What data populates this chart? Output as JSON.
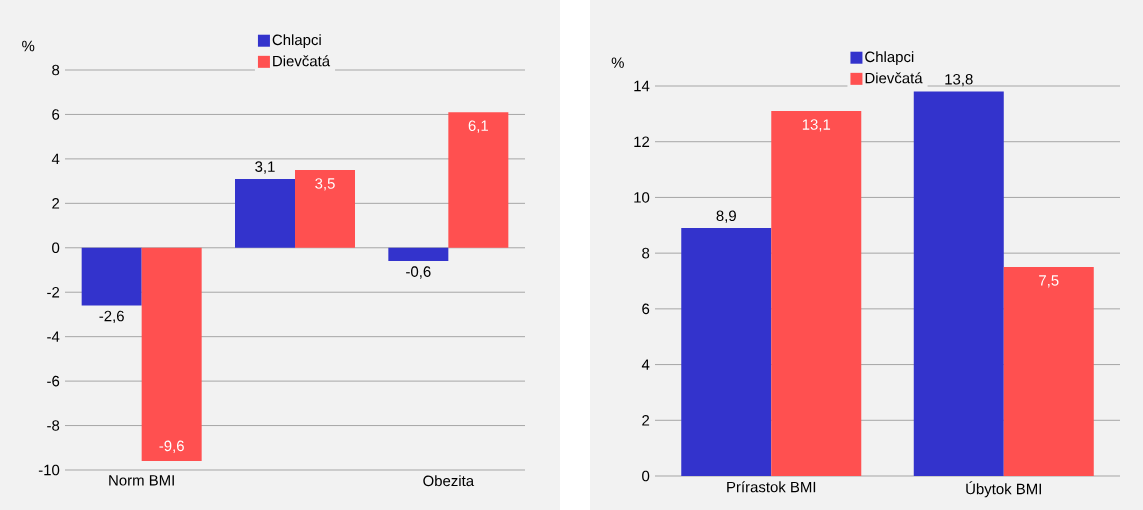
{
  "chart_data": [
    {
      "type": "bar",
      "ylabel": "%",
      "categories": [
        "Norm BMI",
        null,
        "Obezita"
      ],
      "series": [
        {
          "name": "Chlapci",
          "color": "#3333cc",
          "values": [
            -2.6,
            3.1,
            -0.6
          ],
          "value_labels": [
            "-2,6",
            "3,1",
            "-0,6"
          ]
        },
        {
          "name": "Dievčatá",
          "color": "#ff5050",
          "values": [
            -9.6,
            3.5,
            6.1
          ],
          "value_labels": [
            "-9,6",
            "3,5",
            "6,1"
          ]
        }
      ],
      "ylim": [
        -10,
        8
      ],
      "yticks": [
        -10,
        -8,
        -6,
        -4,
        -2,
        0,
        2,
        4,
        6,
        8
      ],
      "grid": "y",
      "legend": "top"
    },
    {
      "type": "bar",
      "ylabel": "%",
      "categories": [
        "Prírastok BMI",
        "Úbytok BMI"
      ],
      "series": [
        {
          "name": "Chlapci",
          "color": "#3333cc",
          "values": [
            8.9,
            13.8
          ],
          "value_labels": [
            "8,9",
            "13,8"
          ]
        },
        {
          "name": "Dievčatá",
          "color": "#ff5050",
          "values": [
            13.1,
            7.5
          ],
          "value_labels": [
            "13,1",
            "7,5"
          ]
        }
      ],
      "ylim": [
        0,
        14
      ],
      "yticks": [
        0,
        2,
        4,
        6,
        8,
        10,
        12,
        14
      ],
      "grid": "y",
      "legend": "top"
    }
  ]
}
